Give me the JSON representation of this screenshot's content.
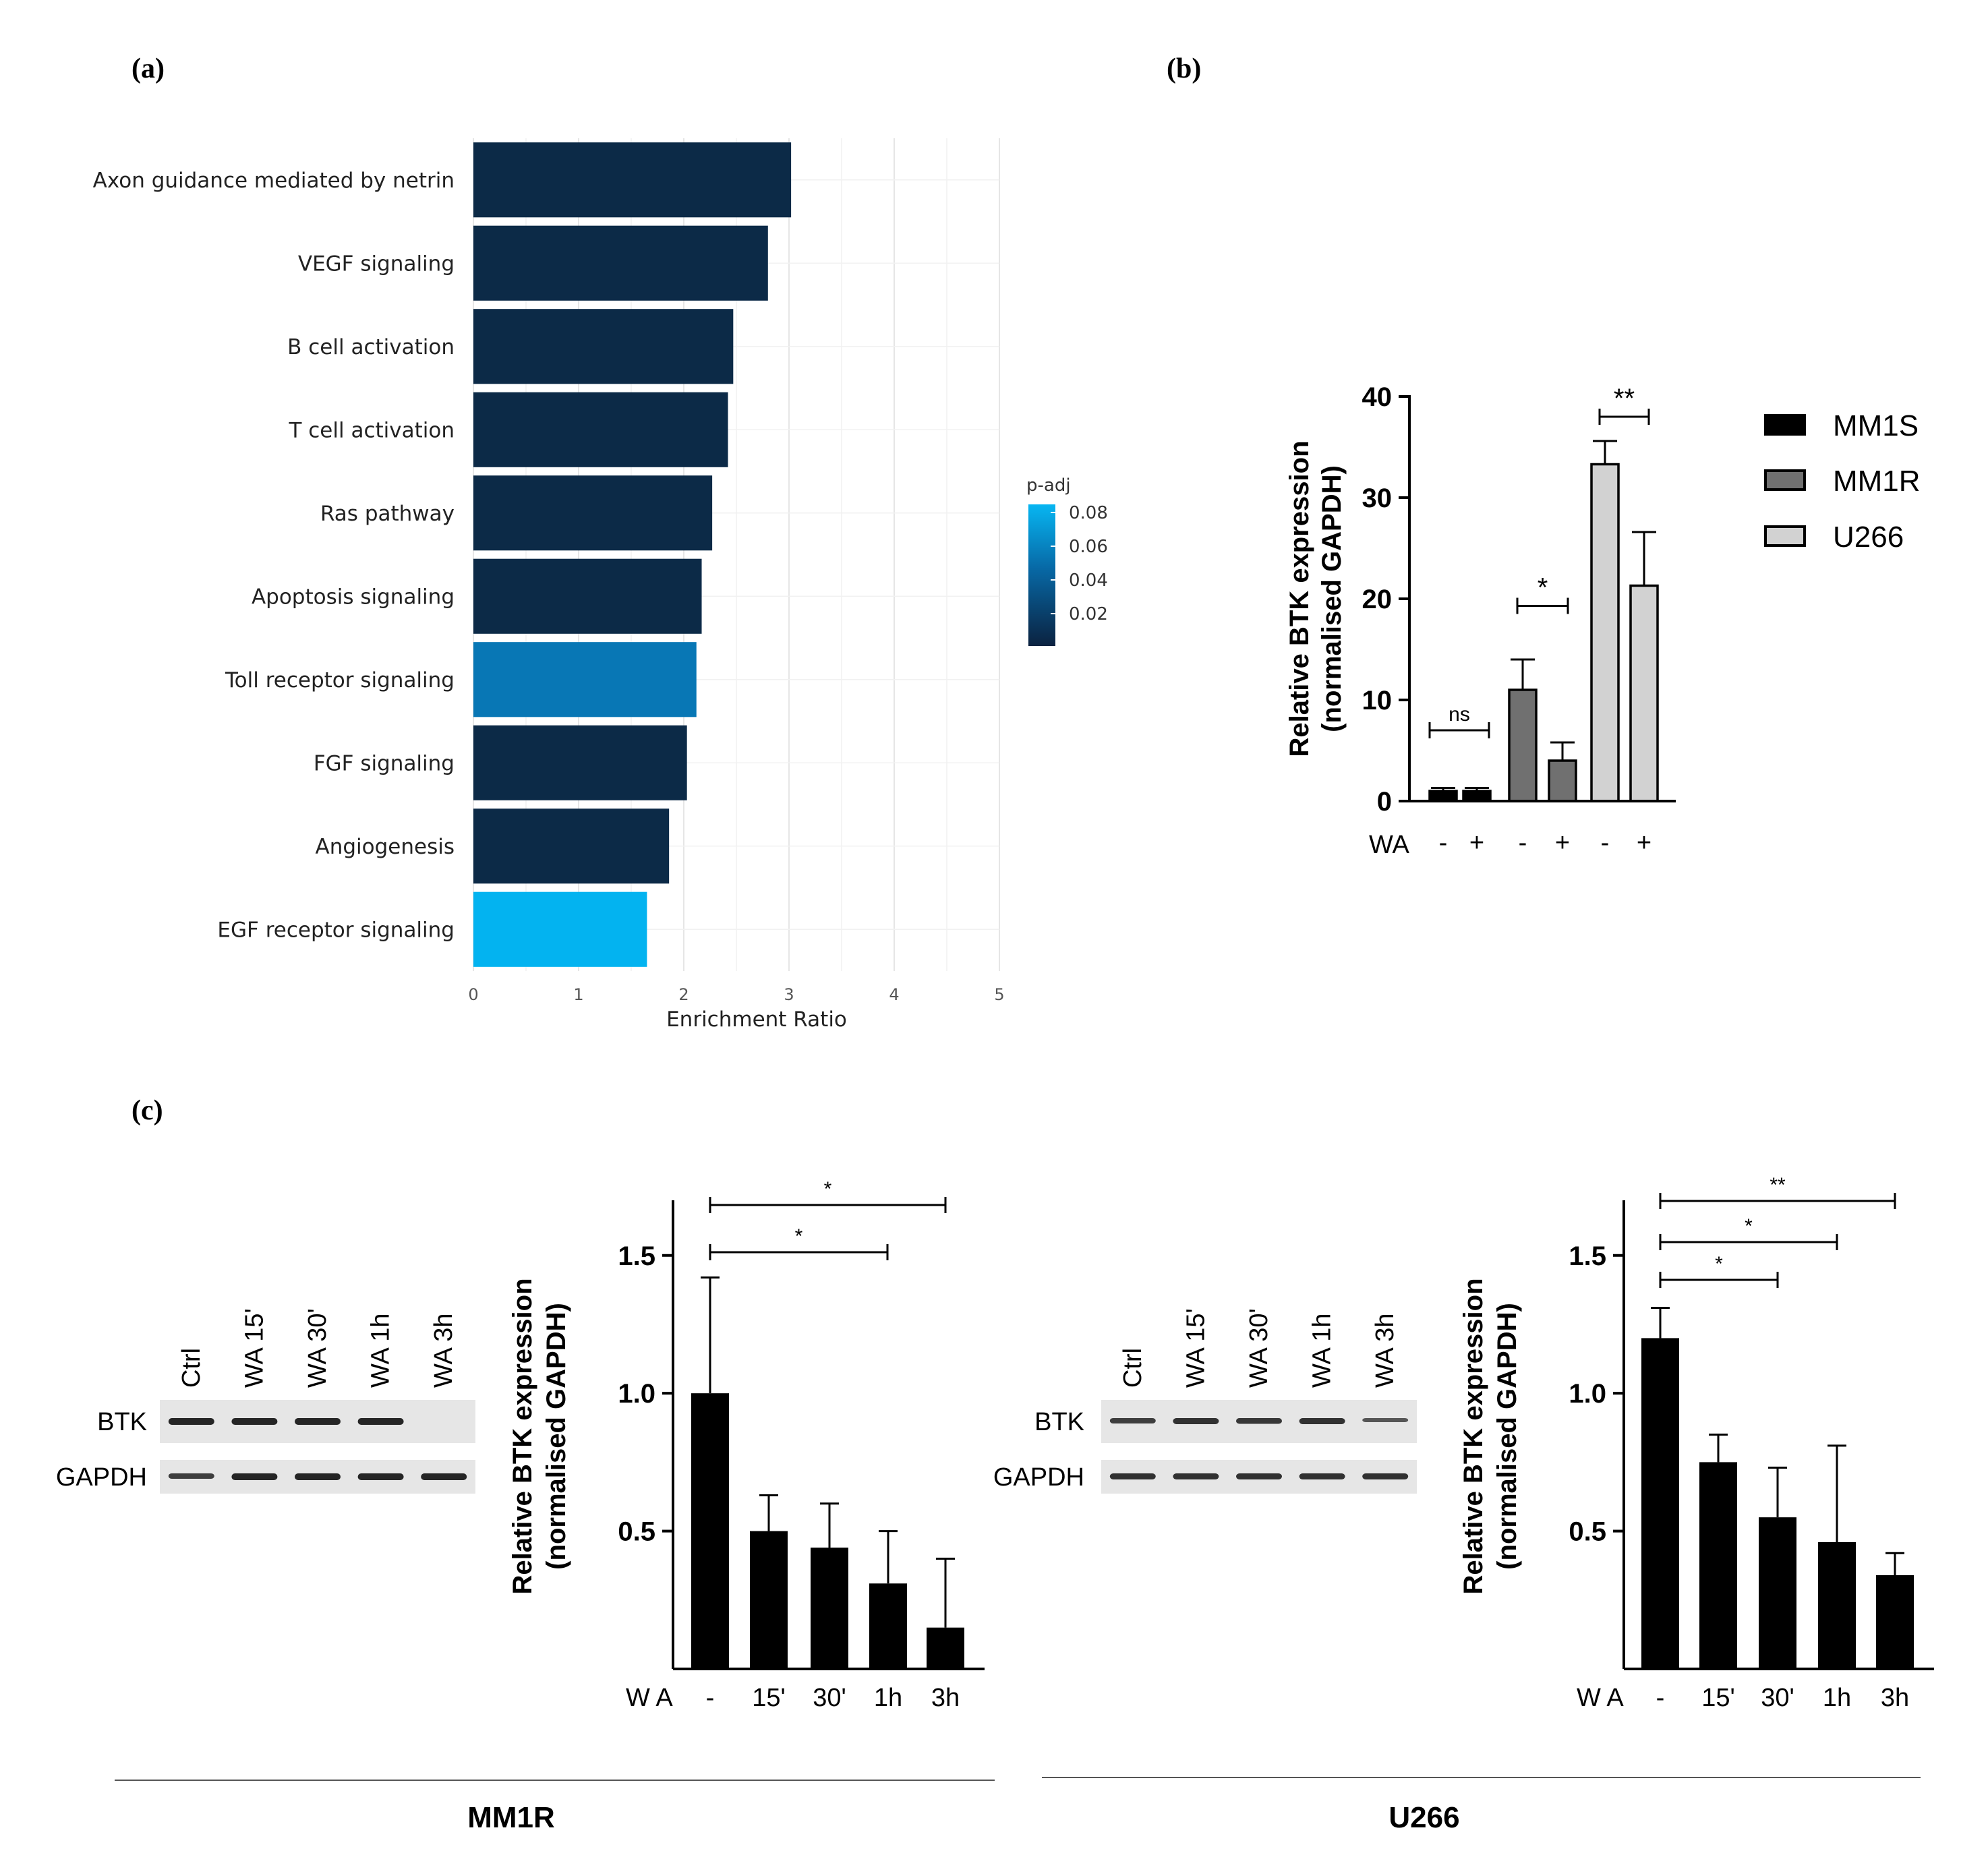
{
  "panel_labels": {
    "a": "(a)",
    "b": "(b)",
    "c": "(c)"
  },
  "colors": {
    "dark": "#0c2a47",
    "mid": "#0877b5",
    "light": "#03b3f0",
    "mm1s": "#000000",
    "mm1r": "#707070",
    "u266": "#d2d2d2"
  },
  "chart_data": [
    {
      "id": "a",
      "type": "bar",
      "orientation": "horizontal",
      "categories": [
        "Axon guidance mediated by netrin",
        "VEGF signaling",
        "B cell activation",
        "T cell activation",
        "Ras pathway",
        "Apoptosis signaling",
        "Toll receptor signaling",
        "FGF signaling",
        "Angiogenesis",
        "EGF receptor signaling"
      ],
      "values": [
        3.02,
        2.8,
        2.47,
        2.42,
        2.27,
        2.17,
        2.12,
        2.03,
        1.86,
        1.65
      ],
      "padj_color": [
        "dark",
        "dark",
        "dark",
        "dark",
        "dark",
        "dark",
        "mid",
        "dark",
        "dark",
        "light"
      ],
      "xlabel": "Enrichment Ratio",
      "xlim": [
        0,
        5
      ],
      "xticks": [
        "0",
        "1",
        "2",
        "3",
        "4",
        "5"
      ],
      "legend": {
        "title": "p-adj",
        "labels": [
          "0.08",
          "0.06",
          "0.04",
          "0.02"
        ]
      }
    },
    {
      "id": "b",
      "type": "bar",
      "ylabel_line1": "Relative BTK expression",
      "ylabel_line2": "(normalised GAPDH)",
      "ylim": [
        0,
        40
      ],
      "yticks": [
        "0",
        "10",
        "20",
        "30",
        "40"
      ],
      "x_prefix": "WA",
      "bars": [
        {
          "series": "MM1S",
          "wa": "-",
          "value": 1.0,
          "err": 0.3
        },
        {
          "series": "MM1S",
          "wa": "+",
          "value": 1.0,
          "err": 0.3
        },
        {
          "series": "MM1R",
          "wa": "-",
          "value": 11.0,
          "err": 3.0
        },
        {
          "series": "MM1R",
          "wa": "+",
          "value": 4.0,
          "err": 1.8
        },
        {
          "series": "U266",
          "wa": "-",
          "value": 33.3,
          "err": 2.3
        },
        {
          "series": "U266",
          "wa": "+",
          "value": 21.3,
          "err": 5.3
        }
      ],
      "legend": [
        "MM1S",
        "MM1R",
        "U266"
      ],
      "significance": [
        "ns",
        "*",
        "**"
      ]
    },
    {
      "id": "c-mm1r",
      "type": "bar",
      "ylabel_line1": "Relative BTK expression",
      "ylabel_line2": "(normalised GAPDH)",
      "ylim": [
        0,
        1.7
      ],
      "yticks": [
        "0.5",
        "1.0",
        "1.5"
      ],
      "x_prefix": "W A",
      "categories": [
        "-",
        "15'",
        "30'",
        "1h",
        "3h"
      ],
      "values": [
        1.0,
        0.5,
        0.44,
        0.31,
        0.15
      ],
      "errors": [
        0.42,
        0.13,
        0.16,
        0.19,
        0.25
      ],
      "significance": [
        "*",
        "*"
      ]
    },
    {
      "id": "c-u266",
      "type": "bar",
      "ylabel_line1": "Relative BTK expression",
      "ylabel_line2": "(normalised GAPDH)",
      "ylim": [
        0,
        1.7
      ],
      "yticks": [
        "0.5",
        "1.0",
        "1.5"
      ],
      "x_prefix": "W A",
      "categories": [
        "-",
        "15'",
        "30'",
        "1h",
        "3h"
      ],
      "values": [
        1.2,
        0.75,
        0.55,
        0.46,
        0.34
      ],
      "errors": [
        0.11,
        0.1,
        0.18,
        0.35,
        0.08
      ],
      "significance": [
        "*",
        "*",
        "**"
      ]
    }
  ],
  "blots": {
    "lanes": [
      "Ctrl",
      "WA 15'",
      "WA 30'",
      "WA 1h",
      "WA 3h"
    ],
    "rows": [
      "BTK",
      "GAPDH"
    ],
    "mm1r": {
      "btk": [
        1,
        1,
        1,
        1,
        0
      ],
      "gapdh": [
        0.8,
        1,
        1,
        1,
        1
      ]
    },
    "u266": {
      "btk": [
        0.8,
        0.9,
        0.85,
        0.9,
        0.6
      ],
      "gapdh": [
        0.9,
        0.9,
        0.9,
        0.9,
        0.9
      ]
    }
  },
  "group_labels": [
    "MM1R",
    "U266"
  ]
}
